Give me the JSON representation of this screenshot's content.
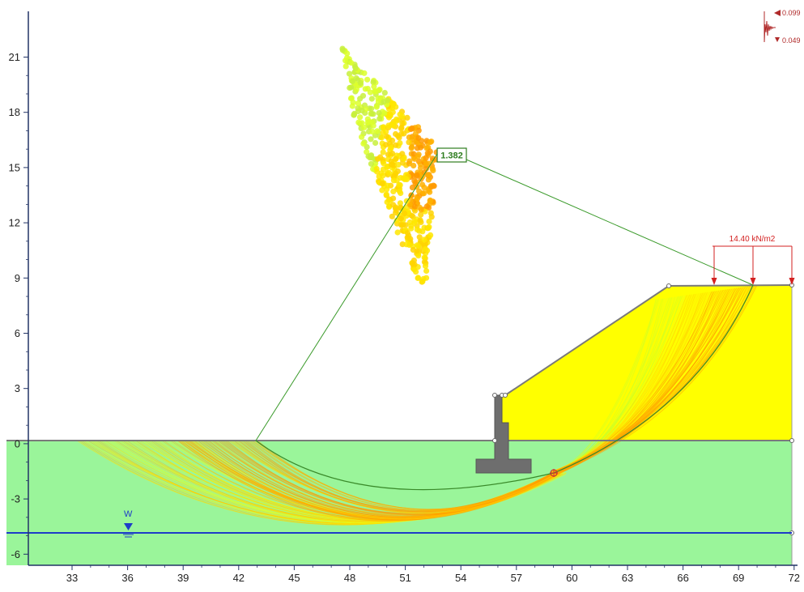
{
  "axes": {
    "x_ticks": [
      "33",
      "36",
      "39",
      "42",
      "45",
      "48",
      "51",
      "54",
      "57",
      "60",
      "63",
      "66",
      "69",
      "72"
    ],
    "y_ticks": [
      "21",
      "18",
      "15",
      "12",
      "9",
      "6",
      "3",
      "0",
      "-3",
      "-6"
    ]
  },
  "critical_fos": "1.382",
  "surface_load": "14.40 kN/m2",
  "water_table_label": "W",
  "seismic": {
    "horizontal": "0.099",
    "vertical": "0.049"
  },
  "colors": {
    "foundation_soil": "#9af59a",
    "backfill_soil": "#ffff00",
    "water_line": "#1e3cc8",
    "wall": "#6e6e6e",
    "fos_box": "#2e7d1f",
    "load": "#d32020",
    "surfaces_low": "#ff8c00",
    "surfaces_high": "#b4ff3c"
  }
}
